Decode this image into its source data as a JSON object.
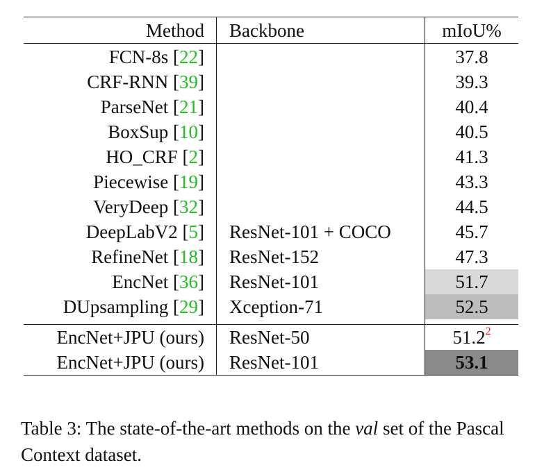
{
  "headers": {
    "method": "Method",
    "backbone": "Backbone",
    "miou": "mIoU%"
  },
  "rows": [
    {
      "method": "FCN-8s",
      "ref": "22",
      "backbone": "",
      "miou": "37.8"
    },
    {
      "method": "CRF-RNN",
      "ref": "39",
      "backbone": "",
      "miou": "39.3"
    },
    {
      "method": "ParseNet",
      "ref": "21",
      "backbone": "",
      "miou": "40.4"
    },
    {
      "method": "BoxSup",
      "ref": "10",
      "backbone": "",
      "miou": "40.5"
    },
    {
      "method": "HO_CRF",
      "ref": "2",
      "backbone": "",
      "miou": "41.3"
    },
    {
      "method": "Piecewise",
      "ref": "19",
      "backbone": "",
      "miou": "43.3"
    },
    {
      "method": "VeryDeep",
      "ref": "32",
      "backbone": "",
      "miou": "44.5"
    },
    {
      "method": "DeepLabV2",
      "ref": "5",
      "backbone": "ResNet-101 + COCO",
      "miou": "45.7"
    },
    {
      "method": "RefineNet",
      "ref": "18",
      "backbone": "ResNet-152",
      "miou": "47.3"
    },
    {
      "method": "EncNet",
      "ref": "36",
      "backbone": "ResNet-101",
      "miou": "51.7"
    },
    {
      "method": "DUpsampling",
      "ref": "29",
      "backbone": "Xception-71",
      "miou": "52.5"
    }
  ],
  "ours": [
    {
      "method": "EncNet+JPU (ours)",
      "backbone": "ResNet-50",
      "miou": "51.2",
      "footnote": "2"
    },
    {
      "method": "EncNet+JPU (ours)",
      "backbone": "ResNet-101",
      "miou": "53.1"
    }
  ],
  "caption": {
    "before": "Table 3: The state-of-the-art methods on the ",
    "italic": "val",
    "after": " set of the Pascal Context dataset."
  },
  "colors": {
    "cite": "#1fbf1f",
    "footnote": "#e31a1c",
    "shade_light": "#d9d9d9",
    "shade_mid": "#bdbdbd",
    "shade_dark": "#8a8a8a"
  }
}
